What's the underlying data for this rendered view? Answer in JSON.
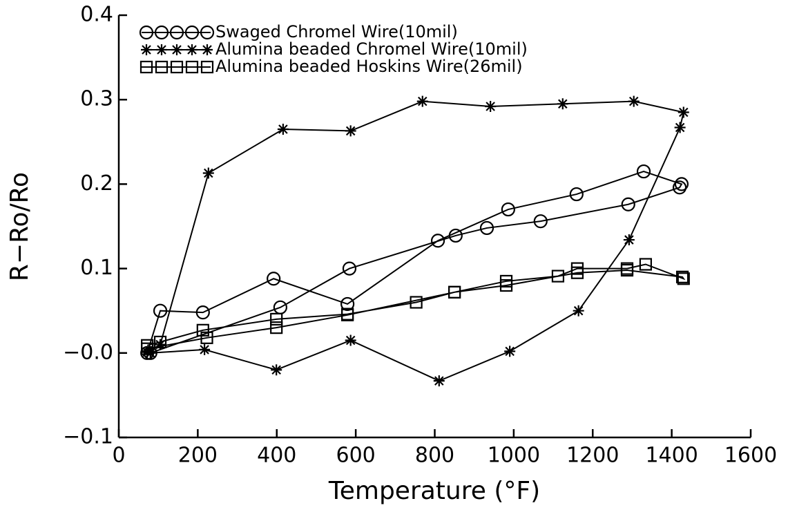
{
  "chart_data": {
    "type": "line",
    "xlabel": "Temperature (°F)",
    "ylabel": "R−Ro/Ro",
    "xlim": [
      0,
      1600
    ],
    "xticks": [
      0,
      200,
      400,
      600,
      800,
      1000,
      1200,
      1400,
      1600
    ],
    "ylim": [
      -0.1,
      0.4
    ],
    "yticks": [
      {
        "value": -0.1,
        "label": "−0.1"
      },
      {
        "value": 0,
        "label": "−0.0"
      },
      0.1,
      0.2,
      0.3,
      0.4
    ],
    "legend": "upper left",
    "series": [
      {
        "name": "Swaged  Chromel  Wire(10mil)",
        "marker": "circle",
        "color": "#000000",
        "x": [
          72,
          105,
          213,
          392,
          579,
          808,
          986,
          1159,
          1329,
          1425,
          1420,
          1290,
          1068,
          932,
          853,
          584,
          409,
          80
        ],
        "values": [
          0.0,
          0.05,
          0.048,
          0.088,
          0.058,
          0.133,
          0.17,
          0.188,
          0.215,
          0.2,
          0.196,
          0.176,
          0.156,
          0.148,
          0.139,
          0.1,
          0.054,
          0.0
        ]
      },
      {
        "name": "Alumina  beaded  Chromel  Wire(10mil)",
        "marker": "asterisk",
        "color": "#000000",
        "x": [
          72,
          105,
          227,
          416,
          587,
          769,
          941,
          1124,
          1304,
          1430,
          1421,
          1292,
          1164,
          990,
          811,
          587,
          399,
          217,
          80
        ],
        "values": [
          0.001,
          0.01,
          0.213,
          0.265,
          0.263,
          0.298,
          0.292,
          0.295,
          0.298,
          0.285,
          0.267,
          0.134,
          0.05,
          0.002,
          -0.033,
          0.015,
          -0.02,
          0.004,
          0.0
        ]
      },
      {
        "name": "Alumina  beaded  Hoskins  Wire(26mil)",
        "marker": "square",
        "color": "#000000",
        "x": [
          72,
          105,
          213,
          399,
          579,
          753,
          850,
          981,
          1112,
          1161,
          1287,
          1334,
          1430,
          1427,
          1287,
          1161,
          981,
          850,
          579,
          399,
          223,
          72
        ],
        "values": [
          0.009,
          0.013,
          0.027,
          0.04,
          0.046,
          0.06,
          0.072,
          0.085,
          0.091,
          0.1,
          0.1,
          0.105,
          0.088,
          0.09,
          0.098,
          0.095,
          0.08,
          0.072,
          0.045,
          0.03,
          0.018,
          0.005
        ]
      }
    ]
  }
}
